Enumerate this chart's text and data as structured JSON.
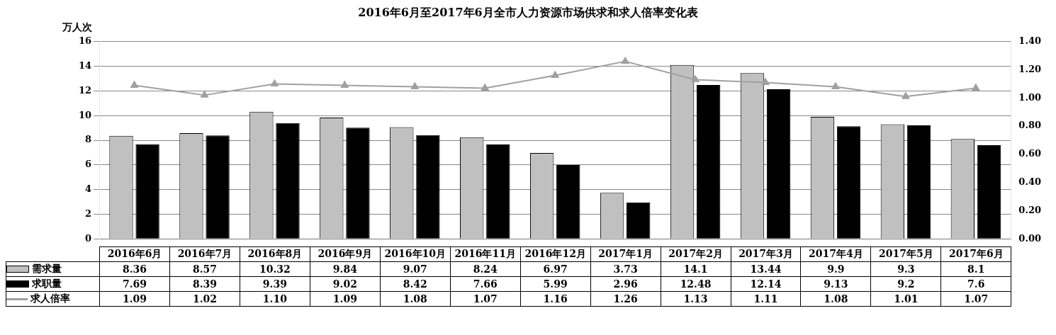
{
  "chart_data": {
    "type": "bar",
    "title": "2016年6月至2017年6月全市人力资源市场供求和求人倍率变化表",
    "ylabel": "万人次",
    "categories": [
      "2016年6月",
      "2016年7月",
      "2016年8月",
      "2016年9月",
      "2016年10月",
      "2016年11月",
      "2016年12月",
      "2017年1月",
      "2017年2月",
      "2017年3月",
      "2017年4月",
      "2017年5月",
      "2017年6月"
    ],
    "series": [
      {
        "name": "需求量",
        "color": "#c0c0c0",
        "values": [
          8.36,
          8.57,
          10.32,
          9.84,
          9.07,
          8.24,
          6.97,
          3.73,
          14.1,
          13.44,
          9.9,
          9.3,
          8.1
        ],
        "value_labels": [
          "8.36",
          "8.57",
          "10.32",
          "9.84",
          "9.07",
          "8.24",
          "6.97",
          "3.73",
          "14.1",
          "13.44",
          "9.9",
          "9.3",
          "8.1"
        ]
      },
      {
        "name": "求职量",
        "color": "#000000",
        "values": [
          7.69,
          8.39,
          9.39,
          9.02,
          8.42,
          7.66,
          5.99,
          2.96,
          12.48,
          12.14,
          9.13,
          9.2,
          7.6
        ],
        "value_labels": [
          "7.69",
          "8.39",
          "9.39",
          "9.02",
          "8.42",
          "7.66",
          "5.99",
          "2.96",
          "12.48",
          "12.14",
          "9.13",
          "9.2",
          "7.6"
        ]
      },
      {
        "name": "求人倍率",
        "type": "line",
        "axis": "y2",
        "color": "#a0a0a0",
        "values": [
          1.09,
          1.02,
          1.1,
          1.09,
          1.08,
          1.07,
          1.16,
          1.26,
          1.13,
          1.11,
          1.08,
          1.01,
          1.07
        ],
        "value_labels": [
          "1.09",
          "1.02",
          "1.10",
          "1.09",
          "1.08",
          "1.07",
          "1.16",
          "1.26",
          "1.13",
          "1.11",
          "1.08",
          "1.01",
          "1.07"
        ]
      }
    ],
    "ylim": [
      0,
      16
    ],
    "yticks": [
      0,
      2,
      4,
      6,
      8,
      10,
      12,
      14,
      16
    ],
    "y2lim": [
      0,
      1.4
    ],
    "y2ticks": [
      {
        "value": 0,
        "label": "0.00"
      },
      {
        "value": 0.2,
        "label": "0.20"
      },
      {
        "value": 0.4,
        "label": "0.40"
      },
      {
        "value": 0.6,
        "label": "0.60"
      },
      {
        "value": 0.8,
        "label": "0.80"
      },
      {
        "value": 1,
        "label": "1.00"
      },
      {
        "value": 1.2,
        "label": "1.20"
      },
      {
        "value": 1.4,
        "label": "1.40"
      }
    ],
    "grid": "y",
    "legend": "bottom left",
    "marker": "triangle",
    "line_style": "solid"
  }
}
